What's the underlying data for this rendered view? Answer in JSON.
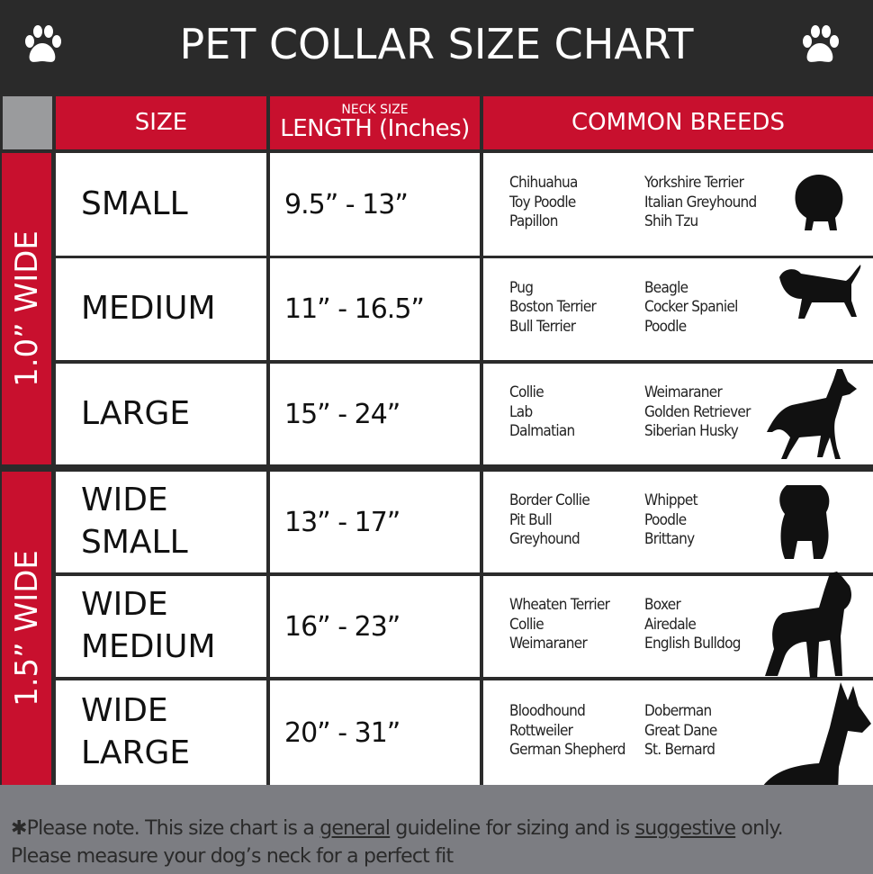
{
  "title": "PET COLLAR SIZE CHART",
  "icons": {
    "header_left": "paw-print-icon",
    "header_right": "paw-print-icon"
  },
  "colors": {
    "header": "#2a2a2a",
    "accent": "#c8102e",
    "footer": "#7c7d82"
  },
  "columns": {
    "size": "SIZE",
    "length_small": "NECK SIZE",
    "length": "LENGTH (Inches)",
    "breeds": "COMMON BREEDS"
  },
  "groups": [
    {
      "label": "1.0” WIDE"
    },
    {
      "label": "1.5” WIDE"
    }
  ],
  "rows": [
    {
      "size": "SMALL",
      "length": "9.5” - 13”",
      "breeds_a": [
        "Chihuahua",
        "Toy Poodle",
        "Papillon"
      ],
      "breeds_b": [
        "Yorkshire Terrier",
        "Italian Greyhound",
        "Shih Tzu"
      ],
      "icon": "pomeranian-silhouette-icon"
    },
    {
      "size": "MEDIUM",
      "length": "11” - 16.5”",
      "breeds_a": [
        "Pug",
        "Boston Terrier",
        "Bull Terrier"
      ],
      "breeds_b": [
        "Beagle",
        "Cocker Spaniel",
        "Poodle"
      ],
      "icon": "dachshund-silhouette-icon"
    },
    {
      "size": "LARGE",
      "length": "15” - 24”",
      "breeds_a": [
        "Collie",
        "Lab",
        "Dalmatian"
      ],
      "breeds_b": [
        "Weimaraner",
        "Golden Retriever",
        "Siberian Husky"
      ],
      "icon": "shepherd-silhouette-icon"
    },
    {
      "size": "WIDE SMALL",
      "length": "13” - 17”",
      "breeds_a": [
        "Border Collie",
        "Pit Bull",
        "Greyhound"
      ],
      "breeds_b": [
        "Whippet",
        "Poodle",
        "Brittany"
      ],
      "icon": "bulldog-silhouette-icon"
    },
    {
      "size": "WIDE MEDIUM",
      "length": "16” - 23”",
      "breeds_a": [
        "Wheaten Terrier",
        "Collie",
        "Weimaraner"
      ],
      "breeds_b": [
        "Boxer",
        "Airedale",
        "English Bulldog"
      ],
      "icon": "pitbull-silhouette-icon"
    },
    {
      "size": "WIDE LARGE",
      "length": "20” - 31”",
      "breeds_a": [
        "Bloodhound",
        "Rottweiler",
        "German Shepherd"
      ],
      "breeds_b": [
        "Doberman",
        "Great Dane",
        "St. Bernard"
      ],
      "icon": "doberman-silhouette-icon"
    }
  ],
  "footer": {
    "p1": "✱Please note. This size chart is a ",
    "u1": "general",
    "p2": " guideline for sizing and is ",
    "u2": "suggestive",
    "p3": " only.",
    "line2": "Please measure your dog’s neck for a perfect fit"
  }
}
